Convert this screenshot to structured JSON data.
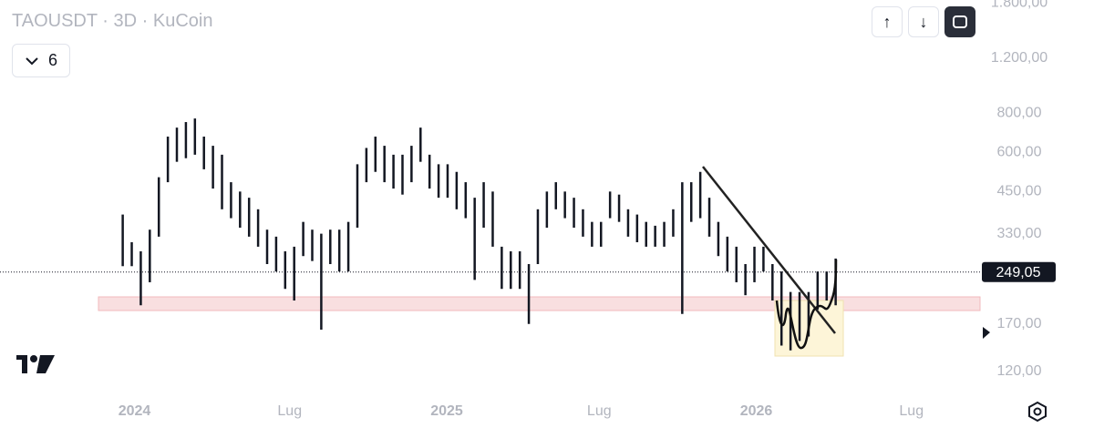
{
  "header": {
    "symbol": "TAOUSDT",
    "interval": "3D",
    "exchange": "KuCoin",
    "indicator_count": "6"
  },
  "chart_data": {
    "type": "hilo",
    "log_scale": true,
    "color": "#131722",
    "high": [
      380,
      310,
      290,
      340,
      500,
      674,
      720,
      750,
      770,
      674,
      630,
      590,
      482,
      450,
      430,
      395,
      340,
      323,
      290,
      300,
      360,
      340,
      330,
      340,
      340,
      360,
      550,
      620,
      674,
      630,
      590,
      590,
      630,
      720,
      590,
      550,
      550,
      520,
      482,
      430,
      482,
      450,
      300,
      290,
      290,
      264,
      395,
      450,
      482,
      450,
      430,
      395,
      360,
      360,
      450,
      440,
      395,
      380,
      360,
      350,
      360,
      395,
      482,
      482,
      520,
      430,
      360,
      323,
      300,
      264,
      300,
      300,
      264,
      250,
      215,
      215,
      215,
      250,
      250,
      275
    ],
    "low": [
      260,
      260,
      195,
      231,
      323,
      482,
      560,
      575,
      590,
      530,
      460,
      395,
      370,
      345,
      323,
      300,
      264,
      250,
      220,
      202,
      280,
      270,
      163,
      264,
      250,
      250,
      345,
      482,
      520,
      482,
      460,
      440,
      482,
      560,
      460,
      430,
      430,
      395,
      370,
      235,
      345,
      300,
      220,
      220,
      220,
      170,
      264,
      345,
      395,
      370,
      345,
      323,
      300,
      300,
      370,
      360,
      323,
      310,
      300,
      300,
      300,
      323,
      183,
      360,
      370,
      323,
      280,
      250,
      231,
      210,
      231,
      250,
      202,
      145,
      140,
      150,
      155,
      189,
      202,
      195
    ],
    "xlim": [
      -13.6,
      95
    ],
    "xticks": [
      {
        "value": 1.3,
        "label": "2024"
      },
      {
        "value": 18.5,
        "label": "Lug"
      },
      {
        "value": 35.9,
        "label": "2025"
      },
      {
        "value": 52.8,
        "label": "Lug"
      },
      {
        "value": 70.2,
        "label": "2026"
      },
      {
        "value": 87.4,
        "label": "Lug"
      }
    ],
    "ylim": [
      100,
      1840
    ],
    "yticks": [
      {
        "value": 120,
        "label": "120,00"
      },
      {
        "value": 170,
        "label": "170,00"
      },
      {
        "value": 330,
        "label": "330,00"
      },
      {
        "value": 450,
        "label": "450,00"
      },
      {
        "value": 600,
        "label": "600,00"
      },
      {
        "value": 800,
        "label": "800,00"
      },
      {
        "value": 1200,
        "label": "1.200,00"
      },
      {
        "value": 1800,
        "label": "1.800,00"
      }
    ],
    "last_price": {
      "value": 249.05,
      "label": "249,05"
    }
  }
}
